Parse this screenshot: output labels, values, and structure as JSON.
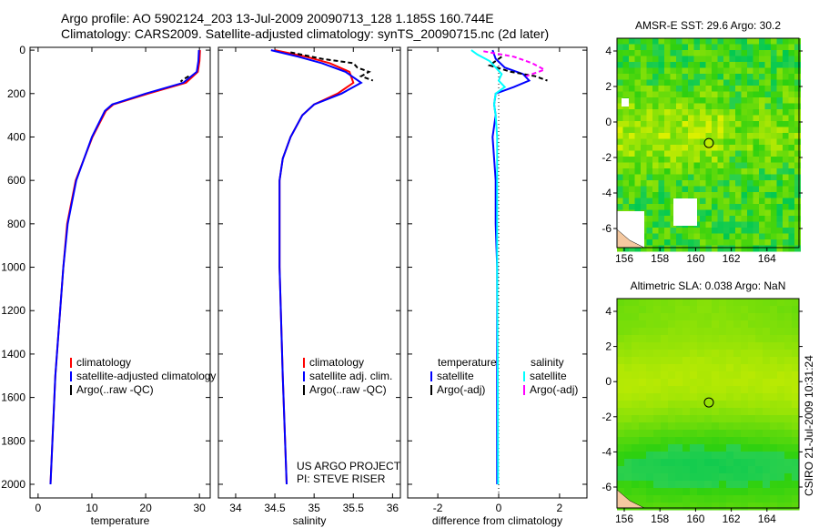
{
  "title_line1": "Argo profile: AO 5902124_203 13-Jul-2009 20090713_128 1.185S 160.744E",
  "title_line2": "Climatology: CARS2009. Satellite-adjusted climatology: synTS_20090715.nc (2d later)",
  "credit": "US ARGO PROJECT",
  "pi": "PI: STEVE RISER",
  "stamp": "CSIRO 21-Jul-2009 10:31:24",
  "colors": {
    "climatology": "#ff0000",
    "satellite": "#0000ff",
    "argo": "#000000",
    "sat_sal": "#00ffff",
    "argo_sal": "#ff00ff",
    "land": "#f4c8a0"
  },
  "chart_data": [
    {
      "type": "line",
      "xlabel": "temperature",
      "ylabel": "",
      "xlim": [
        -1.5,
        32
      ],
      "ylim": [
        2063,
        -13
      ],
      "xticks": [
        "0",
        "10",
        "20",
        "30"
      ],
      "xtickvals": [
        0,
        10,
        20,
        30
      ],
      "yticks": [
        "0",
        "200",
        "400",
        "600",
        "800",
        "1000",
        "1200",
        "1400",
        "1600",
        "1800",
        "2000"
      ],
      "legend": [
        "climatology",
        "satellite-adjusted climatology",
        "Argo(..raw -QC)"
      ],
      "series": [
        {
          "name": "climatology",
          "color": "#ff0000",
          "depth": [
            0,
            50,
            100,
            150,
            200,
            250,
            280,
            400,
            600,
            800,
            1000,
            1500,
            2000
          ],
          "values": [
            30.1,
            30,
            29.7,
            27.5,
            20.5,
            14,
            12.6,
            10.1,
            7,
            5.4,
            4.7,
            3.2,
            2.3
          ]
        },
        {
          "name": "satellite-adjusted climatology",
          "color": "#0000ff",
          "depth": [
            0,
            50,
            100,
            150,
            200,
            250,
            280,
            400,
            600,
            800,
            1000,
            1500,
            2000
          ],
          "values": [
            29.9,
            29.8,
            29.5,
            27,
            20,
            13.8,
            12.4,
            10,
            7.1,
            5.5,
            4.7,
            3.2,
            2.3
          ]
        },
        {
          "name": "Argo(..raw -QC)",
          "color": "#000000",
          "depth": [
            120,
            135,
            145
          ],
          "values": [
            28,
            27,
            26.5
          ]
        }
      ]
    },
    {
      "type": "line",
      "xlabel": "salinity",
      "xlim": [
        33.78,
        36.1
      ],
      "ylim": [
        2063,
        -13
      ],
      "xticks": [
        "34",
        "34.5",
        "35",
        "35.5",
        "36"
      ],
      "xtickvals": [
        34,
        34.5,
        35,
        35.5,
        36
      ],
      "legend": [
        "climatology",
        "satellite adj. clim.",
        "Argo(..raw -QC)"
      ],
      "series": [
        {
          "name": "climatology",
          "color": "#ff0000",
          "depth": [
            0,
            30,
            60,
            100,
            150,
            200,
            250,
            300,
            400,
            500,
            600,
            1000,
            1500,
            2000
          ],
          "values": [
            34.5,
            34.9,
            35.2,
            35.45,
            35.5,
            35.3,
            35.0,
            34.85,
            34.7,
            34.6,
            34.56,
            34.56,
            34.6,
            34.65
          ]
        },
        {
          "name": "satellite adj. clim.",
          "color": "#0000ff",
          "depth": [
            0,
            30,
            60,
            100,
            150,
            200,
            250,
            300,
            400,
            500,
            600,
            1000,
            1500,
            2000
          ],
          "values": [
            34.45,
            34.8,
            35.1,
            35.4,
            35.6,
            35.35,
            35.0,
            34.85,
            34.7,
            34.6,
            34.56,
            34.56,
            34.6,
            34.65
          ]
        },
        {
          "name": "Argo(..raw -QC)",
          "color": "#000000",
          "depth": [
            10,
            40,
            60,
            80,
            100,
            120,
            140
          ],
          "values": [
            34.7,
            35.1,
            35.5,
            35.55,
            35.7,
            35.6,
            35.75
          ]
        }
      ]
    },
    {
      "type": "line",
      "xlabel": "difference from climatology",
      "xlim": [
        -2.99,
        2.9
      ],
      "ylim": [
        2063,
        -13
      ],
      "xticks": [
        "-2",
        "0",
        "2"
      ],
      "xtickvals": [
        -2,
        0,
        2
      ],
      "legend_temperature": [
        "temperature",
        "satellite",
        "Argo(-adj)"
      ],
      "legend_salinity": [
        "salinity",
        "satellite",
        "Argo(-adj)"
      ],
      "series": [
        {
          "name": "temperature satellite",
          "color": "#0000ff",
          "depth": [
            0,
            40,
            80,
            110,
            140,
            170,
            200,
            250,
            300,
            400,
            500,
            600,
            800,
            1000,
            1500,
            2000
          ],
          "values": [
            -0.2,
            -0.1,
            0.2,
            0.8,
            1.0,
            0.5,
            -0.1,
            -0.15,
            -0.1,
            -0.2,
            -0.15,
            -0.1,
            -0.1,
            -0.05,
            -0.05,
            -0.05
          ]
        },
        {
          "name": "temperature Argo(-adj)",
          "color": "#000000",
          "depth": [
            30,
            70,
            100,
            120,
            140
          ],
          "values": [
            0.1,
            -0.3,
            0.4,
            1.2,
            1.6
          ]
        },
        {
          "name": "salinity satellite",
          "color": "#00ffff",
          "depth": [
            0,
            20,
            50,
            80,
            110,
            140,
            170,
            200,
            250,
            300,
            400,
            600,
            1000,
            1500,
            2000
          ],
          "values": [
            -0.9,
            -0.7,
            -0.3,
            -0.1,
            0.1,
            0.0,
            0.2,
            -0.1,
            -0.15,
            -0.1,
            -0.05,
            -0.05,
            -0.05,
            -0.03,
            -0.02
          ]
        },
        {
          "name": "salinity Argo(-adj)",
          "color": "#ff00ff",
          "depth": [
            5,
            30,
            60,
            90,
            120
          ],
          "values": [
            -0.5,
            0.5,
            1.1,
            1.5,
            0.9
          ]
        }
      ]
    },
    {
      "type": "heatmap",
      "title": "AMSR-E SST: 29.6 Argo: 30.2",
      "xticks": [
        "156",
        "158",
        "160",
        "162",
        "164"
      ],
      "yticks": [
        "4",
        "2",
        "0",
        "-2",
        "-4",
        "-6"
      ],
      "float_position": [
        160.744,
        -1.185
      ]
    },
    {
      "type": "heatmap",
      "title": "Altimetric SLA: 0.038 Argo: NaN",
      "xticks": [
        "156",
        "158",
        "160",
        "162",
        "164"
      ],
      "yticks": [
        "4",
        "2",
        "0",
        "-2",
        "-4",
        "-6"
      ],
      "float_position": [
        160.744,
        -1.185
      ]
    }
  ]
}
